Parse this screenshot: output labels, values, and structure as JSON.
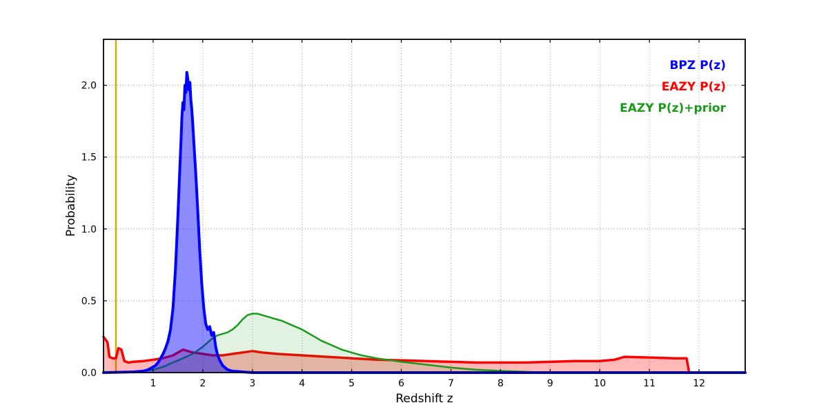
{
  "chart_data": {
    "type": "line",
    "title": "",
    "xlabel": "Redshift z",
    "ylabel": "Probability",
    "xlim": [
      0,
      12.93
    ],
    "ylim": [
      0,
      2.32
    ],
    "xticks": [
      1,
      2,
      3,
      4,
      5,
      6,
      7,
      8,
      9,
      10,
      11,
      12
    ],
    "yticks": [
      0.0,
      0.5,
      1.0,
      1.5,
      2.0
    ],
    "grid": "dotted",
    "grid_color": "#999999",
    "background": "#ffffff",
    "frame_color": "#000000",
    "legend_position": "upper right",
    "vline": {
      "x": 0.25,
      "color": "#c3b300",
      "width": 2.5
    },
    "legend": [
      {
        "label": "BPZ P(z)",
        "color": "#0000ff"
      },
      {
        "label": "EAZY P(z)",
        "color": "#ff0000"
      },
      {
        "label": "EAZY P(z)+prior",
        "color": "#1a9a1a"
      }
    ],
    "series": [
      {
        "name": "BPZ P(z)",
        "color": "#0000ff",
        "fill_opacity": 0.45,
        "line_width": 4,
        "zorder": 3,
        "x": [
          0.0,
          0.6,
          0.8,
          0.9,
          1.0,
          1.05,
          1.1,
          1.15,
          1.2,
          1.25,
          1.3,
          1.35,
          1.4,
          1.45,
          1.5,
          1.53,
          1.56,
          1.58,
          1.6,
          1.62,
          1.64,
          1.66,
          1.68,
          1.7,
          1.72,
          1.74,
          1.76,
          1.78,
          1.8,
          1.83,
          1.86,
          1.9,
          1.94,
          1.98,
          2.02,
          2.06,
          2.1,
          2.14,
          2.18,
          2.22,
          2.26,
          2.3,
          2.35,
          2.4,
          2.5,
          2.6,
          2.8,
          3.0,
          12.93
        ],
        "y": [
          0,
          0.005,
          0.01,
          0.02,
          0.04,
          0.05,
          0.07,
          0.1,
          0.13,
          0.17,
          0.22,
          0.3,
          0.45,
          0.72,
          1.1,
          1.35,
          1.6,
          1.78,
          1.88,
          1.83,
          2.0,
          1.95,
          2.09,
          2.04,
          1.97,
          2.02,
          1.9,
          1.83,
          1.72,
          1.55,
          1.38,
          1.12,
          0.85,
          0.62,
          0.45,
          0.34,
          0.3,
          0.32,
          0.26,
          0.28,
          0.18,
          0.12,
          0.08,
          0.05,
          0.02,
          0.01,
          0.005,
          0.0,
          0.0
        ]
      },
      {
        "name": "EAZY P(z)",
        "color": "#ff0000",
        "fill_opacity": 0.28,
        "line_width": 3.5,
        "zorder": 1,
        "x": [
          0.0,
          0.08,
          0.12,
          0.18,
          0.25,
          0.3,
          0.36,
          0.42,
          0.5,
          0.6,
          0.8,
          1.0,
          1.2,
          1.4,
          1.5,
          1.6,
          1.7,
          1.8,
          2.0,
          2.2,
          2.4,
          2.6,
          2.8,
          3.0,
          3.2,
          3.5,
          4.0,
          4.5,
          5.0,
          5.5,
          6.0,
          6.5,
          7.0,
          7.5,
          8.0,
          8.5,
          9.0,
          9.5,
          10.0,
          10.3,
          10.5,
          11.0,
          11.5,
          11.75,
          11.8
        ],
        "y": [
          0.25,
          0.21,
          0.11,
          0.1,
          0.1,
          0.17,
          0.16,
          0.08,
          0.07,
          0.075,
          0.08,
          0.09,
          0.1,
          0.12,
          0.14,
          0.16,
          0.15,
          0.14,
          0.13,
          0.12,
          0.12,
          0.13,
          0.14,
          0.15,
          0.14,
          0.13,
          0.12,
          0.11,
          0.1,
          0.09,
          0.085,
          0.08,
          0.075,
          0.07,
          0.07,
          0.07,
          0.075,
          0.08,
          0.08,
          0.09,
          0.11,
          0.105,
          0.1,
          0.1,
          0.0
        ]
      },
      {
        "name": "EAZY P(z)+prior",
        "color": "#1a9a1a",
        "fill_opacity": 0.13,
        "line_width": 2.5,
        "zorder": 2,
        "x": [
          0.0,
          0.5,
          0.8,
          1.0,
          1.2,
          1.4,
          1.6,
          1.8,
          2.0,
          2.1,
          2.2,
          2.3,
          2.4,
          2.5,
          2.6,
          2.7,
          2.8,
          2.9,
          3.0,
          3.1,
          3.2,
          3.4,
          3.6,
          3.8,
          4.0,
          4.2,
          4.4,
          4.6,
          4.8,
          5.0,
          5.2,
          5.5,
          5.8,
          6.0,
          6.5,
          7.0,
          7.5,
          8.0,
          8.5,
          9.0,
          12.93
        ],
        "y": [
          0.0,
          0.005,
          0.01,
          0.02,
          0.04,
          0.07,
          0.1,
          0.13,
          0.18,
          0.21,
          0.24,
          0.26,
          0.27,
          0.28,
          0.3,
          0.33,
          0.37,
          0.4,
          0.41,
          0.41,
          0.4,
          0.38,
          0.36,
          0.33,
          0.3,
          0.26,
          0.22,
          0.19,
          0.16,
          0.14,
          0.12,
          0.1,
          0.085,
          0.075,
          0.055,
          0.035,
          0.02,
          0.012,
          0.006,
          0.0,
          0.0
        ]
      }
    ]
  }
}
